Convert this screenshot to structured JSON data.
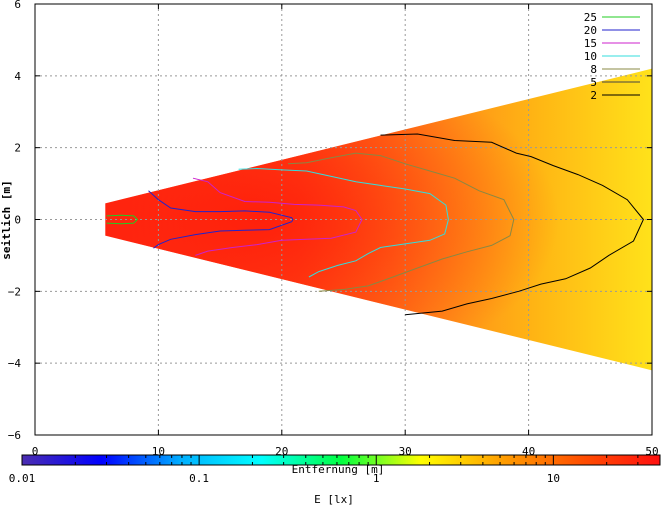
{
  "chart_data": {
    "type": "heatmap",
    "title": "",
    "xlabel": "Entfernung [m]",
    "ylabel": "seitlich [m]",
    "xlim": [
      0,
      50
    ],
    "ylim": [
      -6,
      6
    ],
    "xticks": [
      0,
      10,
      20,
      30,
      40,
      50
    ],
    "yticks": [
      -6,
      -4,
      -2,
      0,
      2,
      4,
      6
    ],
    "grid": true,
    "illuminated_region": {
      "x": [
        5.7,
        50
      ],
      "half_width": [
        0.45,
        4.2
      ]
    },
    "legend": {
      "placement": "top-right",
      "entries": [
        {
          "label": "25",
          "color": "#22cc22"
        },
        {
          "label": "20",
          "color": "#2222cc"
        },
        {
          "label": "15",
          "color": "#cc22cc"
        },
        {
          "label": "10",
          "color": "#33dddd"
        },
        {
          "label": "8",
          "color": "#888844"
        },
        {
          "label": "5",
          "color": "#444444"
        },
        {
          "label": "2",
          "color": "#000000"
        }
      ]
    },
    "contours": [
      {
        "level": 25,
        "color": "#22cc22",
        "points": [
          [
            5.8,
            0.1
          ],
          [
            7,
            0.12
          ],
          [
            8,
            0.1
          ],
          [
            8.3,
            0
          ],
          [
            8,
            -0.1
          ],
          [
            7,
            -0.12
          ],
          [
            5.8,
            -0.1
          ]
        ]
      },
      {
        "level": 20,
        "color": "#2222cc",
        "points": [
          [
            9.2,
            0.8
          ],
          [
            10,
            0.55
          ],
          [
            11,
            0.32
          ],
          [
            13,
            0.22
          ],
          [
            15,
            0.22
          ],
          [
            17,
            0.24
          ],
          [
            19,
            0.2
          ],
          [
            20.8,
            0.05
          ],
          [
            20.9,
            0
          ],
          [
            20.8,
            -0.06
          ],
          [
            19,
            -0.28
          ],
          [
            17,
            -0.3
          ],
          [
            15,
            -0.32
          ],
          [
            13,
            -0.42
          ],
          [
            11,
            -0.55
          ],
          [
            10,
            -0.7
          ],
          [
            9.6,
            -0.8
          ]
        ]
      },
      {
        "level": 15,
        "color": "#cc22cc",
        "points": [
          [
            12.8,
            1.15
          ],
          [
            14,
            1.05
          ],
          [
            15,
            0.75
          ],
          [
            17,
            0.5
          ],
          [
            19,
            0.48
          ],
          [
            21,
            0.42
          ],
          [
            23,
            0.4
          ],
          [
            25,
            0.35
          ],
          [
            26,
            0.25
          ],
          [
            26.5,
            0
          ],
          [
            26,
            -0.35
          ],
          [
            24,
            -0.52
          ],
          [
            22,
            -0.55
          ],
          [
            20,
            -0.58
          ],
          [
            18,
            -0.7
          ],
          [
            16,
            -0.78
          ],
          [
            14,
            -0.88
          ],
          [
            13,
            -1.0
          ]
        ]
      },
      {
        "level": 10,
        "color": "#33dddd",
        "points": [
          [
            16.5,
            1.4
          ],
          [
            18,
            1.42
          ],
          [
            20,
            1.38
          ],
          [
            22,
            1.35
          ],
          [
            24,
            1.2
          ],
          [
            26,
            1.05
          ],
          [
            28,
            0.95
          ],
          [
            30,
            0.85
          ],
          [
            32,
            0.72
          ],
          [
            33.3,
            0.4
          ],
          [
            33.5,
            0
          ],
          [
            33.2,
            -0.4
          ],
          [
            32,
            -0.58
          ],
          [
            30,
            -0.68
          ],
          [
            28,
            -0.78
          ],
          [
            27,
            -0.95
          ],
          [
            26,
            -1.15
          ],
          [
            24.5,
            -1.28
          ],
          [
            23,
            -1.45
          ],
          [
            22.2,
            -1.6
          ]
        ]
      },
      {
        "level": 8,
        "color": "#888844",
        "points": [
          [
            20.5,
            1.55
          ],
          [
            22,
            1.58
          ],
          [
            24,
            1.72
          ],
          [
            26,
            1.85
          ],
          [
            28,
            1.78
          ],
          [
            30,
            1.55
          ],
          [
            32,
            1.35
          ],
          [
            34,
            1.15
          ],
          [
            36,
            0.8
          ],
          [
            38,
            0.55
          ],
          [
            38.8,
            0
          ],
          [
            38.5,
            -0.45
          ],
          [
            37,
            -0.72
          ],
          [
            35,
            -0.9
          ],
          [
            33,
            -1.1
          ],
          [
            31,
            -1.35
          ],
          [
            29,
            -1.6
          ],
          [
            27,
            -1.85
          ],
          [
            25,
            -1.95
          ],
          [
            23,
            -2.0
          ]
        ]
      },
      {
        "level": 2,
        "color": "#000000",
        "points": [
          [
            28,
            2.35
          ],
          [
            31,
            2.38
          ],
          [
            34,
            2.2
          ],
          [
            37,
            2.15
          ],
          [
            39,
            1.85
          ],
          [
            40.2,
            1.75
          ],
          [
            42,
            1.5
          ],
          [
            44,
            1.25
          ],
          [
            46,
            0.95
          ],
          [
            48,
            0.55
          ],
          [
            49.3,
            0
          ],
          [
            48.5,
            -0.6
          ],
          [
            46.5,
            -1.0
          ],
          [
            45,
            -1.35
          ],
          [
            43,
            -1.65
          ],
          [
            41,
            -1.8
          ],
          [
            39.2,
            -2.0
          ],
          [
            37,
            -2.2
          ],
          [
            35,
            -2.35
          ],
          [
            33,
            -2.55
          ],
          [
            30,
            -2.65
          ]
        ]
      }
    ],
    "colorbar": {
      "label": "E [lx]",
      "scale": "log",
      "range": [
        0.01,
        40
      ],
      "tick_labels": [
        "0.01",
        "0.1",
        "1",
        "10"
      ],
      "tick_values": [
        0.01,
        0.1,
        1,
        10
      ],
      "colors": [
        "#4b2db0",
        "#0000ff",
        "#00b0ff",
        "#00ffff",
        "#00ff40",
        "#ffff00",
        "#ffa000",
        "#ff5000",
        "#ff1010"
      ]
    }
  }
}
